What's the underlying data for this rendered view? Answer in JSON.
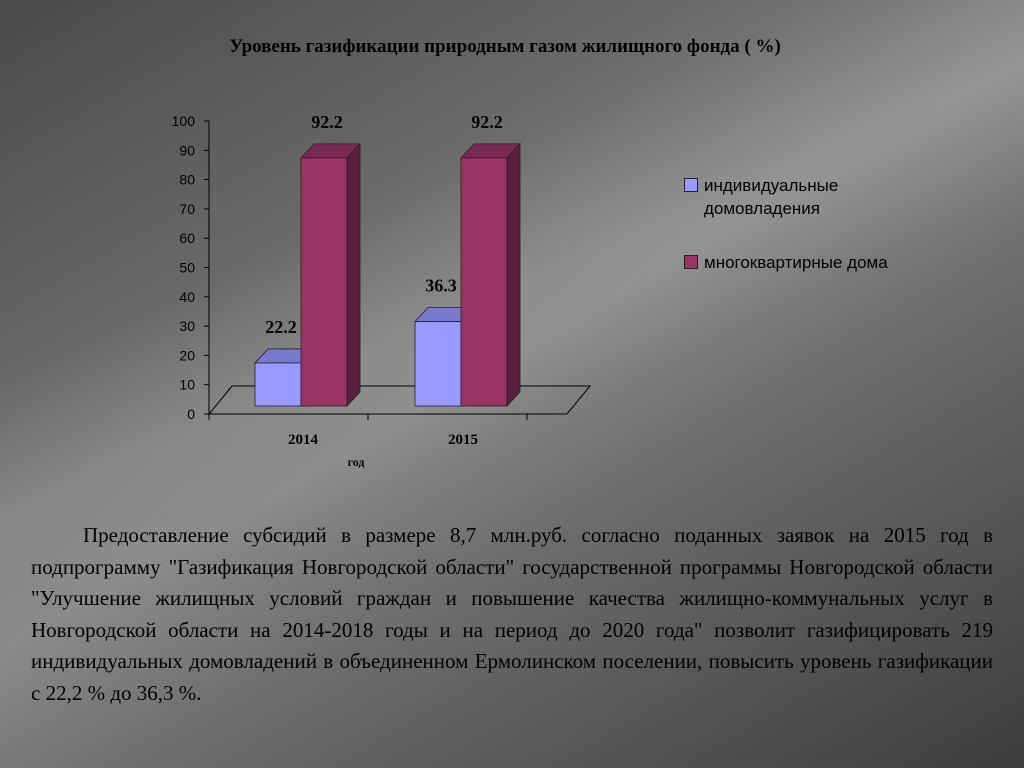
{
  "chart_data": {
    "type": "bar",
    "title": "Уровень газификации природным газом жилищного фонда ( %)",
    "xlabel": "год",
    "ylabel": "",
    "categories": [
      "2014",
      "2015"
    ],
    "ylim": [
      0,
      100
    ],
    "yticks": [
      0,
      10,
      20,
      30,
      40,
      50,
      60,
      70,
      80,
      90,
      100
    ],
    "series": [
      {
        "name": "индивидуальные домовладения",
        "values": [
          22.2,
          36.3
        ],
        "color": "#9999ff"
      },
      {
        "name": "многоквартирные дома",
        "values": [
          92.2,
          92.2
        ],
        "color": "#993366"
      }
    ],
    "data_labels": [
      "22.2",
      "36.3",
      "92.2",
      "92.2"
    ],
    "legend_position": "right",
    "grid": false,
    "style": "3d"
  },
  "paragraph": "Предоставление  субсидий в размере 8,7 млн.руб.  согласно поданных заявок на 2015 год  в подпрограмму \"Газификация Новгородской области\" государственной программы Новгородской области \"Улучшение жилищных условий граждан и повышение качества жилищно-коммунальных услуг в Новгородской области на 2014-2018 годы и на период до 2020 года\" позволит  газифицировать 219 индивидуальных домовладений в объединенном Ермолинском поселении, повысить уровень газификации с 22,2 %  до 36,3 %."
}
